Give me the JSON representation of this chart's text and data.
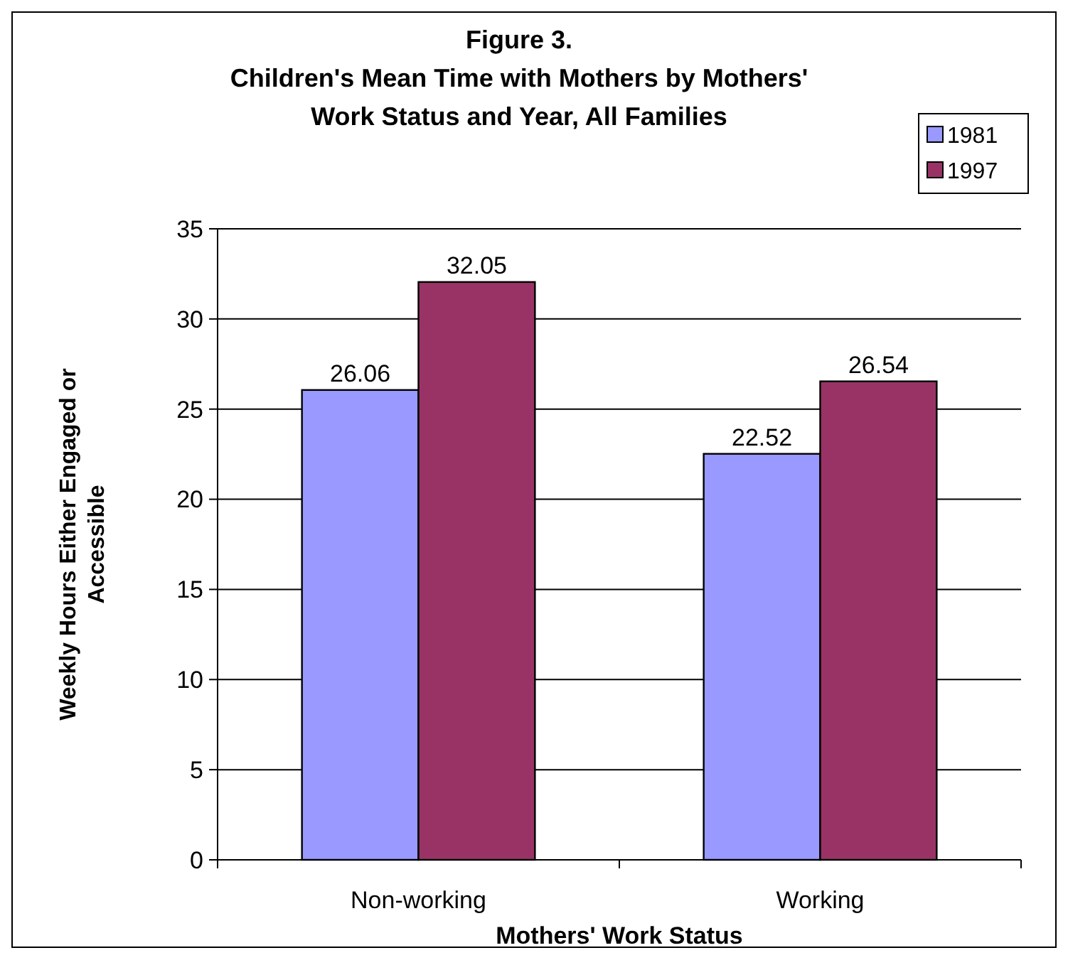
{
  "chart_data": {
    "type": "bar",
    "title": "Figure 3.\nChildren's Mean Time with Mothers by Mothers'\nWork Status and Year, All Families",
    "xlabel": "Mothers' Work Status",
    "ylabel": "Weekly Hours Either Engaged or\nAccessible",
    "categories": [
      "Non-working",
      "Working"
    ],
    "series": [
      {
        "name": "1981",
        "color": "#9999ff",
        "values": [
          26.06,
          22.52
        ]
      },
      {
        "name": "1997",
        "color": "#993366",
        "values": [
          32.05,
          26.54
        ]
      }
    ],
    "ylim": [
      0,
      35
    ],
    "yticks": [
      0,
      5,
      10,
      15,
      20,
      25,
      30,
      35
    ],
    "grid": "y",
    "legend": "top right",
    "data_labels": true
  }
}
